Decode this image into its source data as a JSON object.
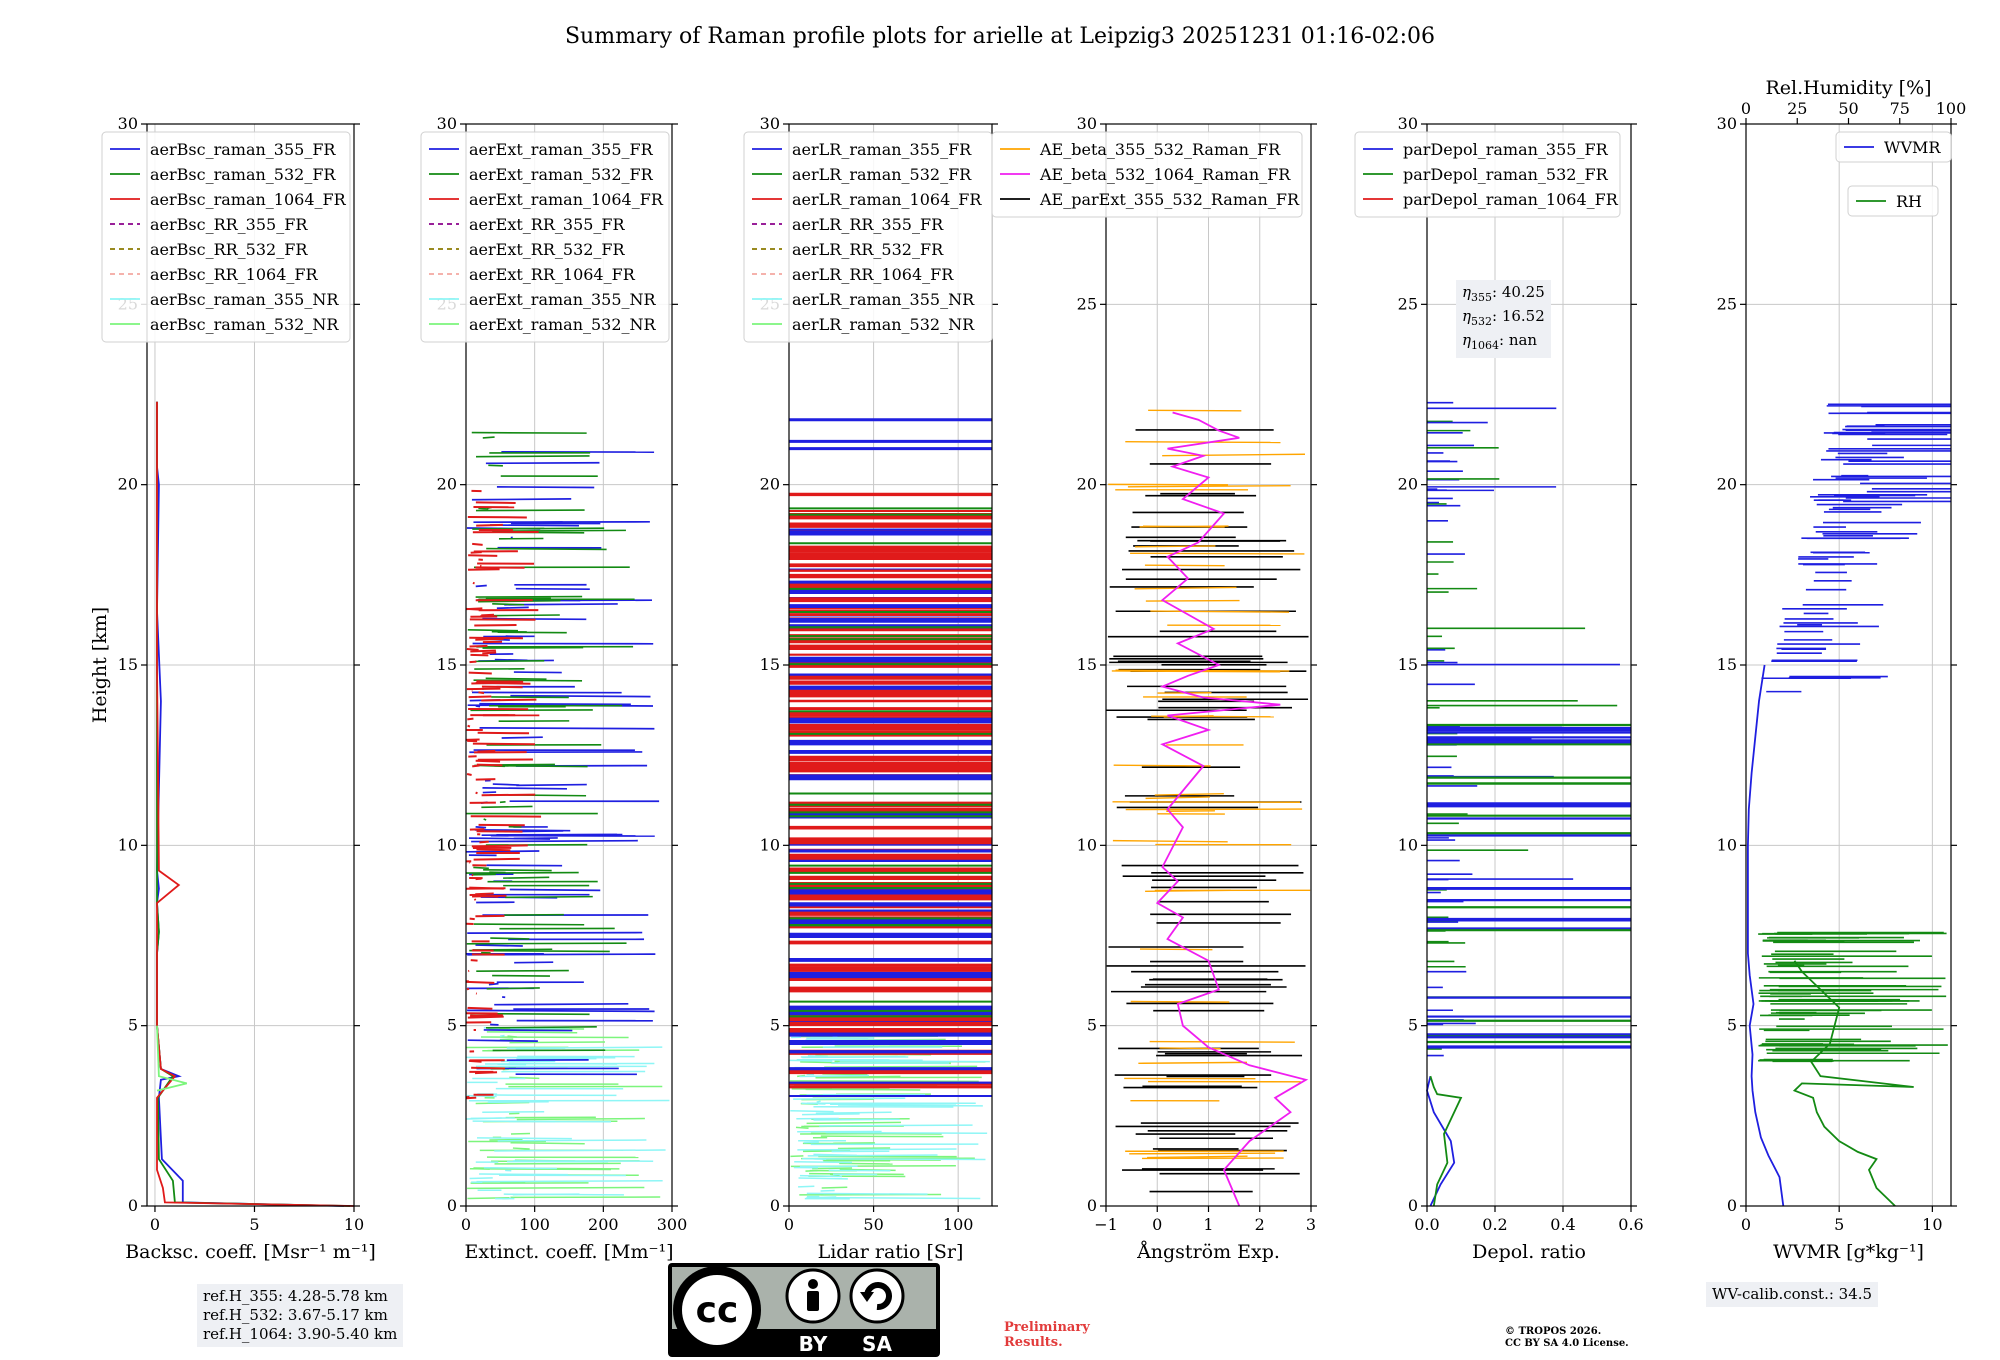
{
  "title": "Summary of Raman profile plots for arielle at Leipzig3 20251231 01:16-02:06",
  "chart_data": [
    {
      "type": "line",
      "panel": "backscatter",
      "xlabel": "Backsc. coeff. [Msr⁻¹ m⁻¹]",
      "ylabel": "Height [km]",
      "xlim": [
        -0.4,
        10
      ],
      "ylim": [
        0,
        30
      ],
      "xticks": [
        0,
        5,
        10
      ],
      "yticks": [
        0,
        5,
        10,
        15,
        20,
        25,
        30
      ],
      "legend": [
        "aerBsc_raman_355_FR",
        "aerBsc_raman_532_FR",
        "aerBsc_raman_1064_FR",
        "aerBsc_RR_355_FR",
        "aerBsc_RR_532_FR",
        "aerBsc_RR_1064_FR",
        "aerBsc_raman_355_NR",
        "aerBsc_raman_532_NR"
      ],
      "series": [
        {
          "name": "aerBsc_raman_355_FR",
          "color": "#1f1fe0",
          "x": [
            9.5,
            1.4,
            1.4,
            0.35,
            0.2,
            0.3,
            1.2,
            0.3,
            0.1,
            0.1,
            0.2,
            0.1,
            0.2,
            0.1,
            0.3,
            0.1,
            0.2,
            0.1,
            0.1,
            0.1
          ],
          "y": [
            0,
            0.1,
            0.7,
            1.3,
            3.0,
            3.5,
            3.6,
            3.8,
            5,
            7,
            7.6,
            8.4,
            8.8,
            9.3,
            14.0,
            16.5,
            20.0,
            20.5,
            21.5,
            22.3
          ]
        },
        {
          "name": "aerBsc_raman_532_FR",
          "color": "#138a13",
          "x": [
            9.8,
            1.0,
            0.9,
            0.2,
            0.15,
            0.9,
            0.3,
            0.1,
            0.1,
            0.2,
            0.1,
            0.1,
            0.1
          ],
          "y": [
            0,
            0.1,
            0.7,
            1.3,
            3.0,
            3.6,
            3.8,
            5,
            7,
            7.6,
            8.4,
            15.0,
            22.3
          ]
        },
        {
          "name": "aerBsc_raman_1064_FR",
          "color": "#e01a1a",
          "x": [
            10.0,
            0.5,
            0.4,
            0.1,
            0.1,
            1.0,
            0.3,
            0.1,
            0.1,
            0.1,
            0.1,
            1.2,
            0.2,
            0.1,
            0.1
          ],
          "y": [
            0,
            0.1,
            0.5,
            1.0,
            3.0,
            3.6,
            3.8,
            5,
            7,
            7.6,
            8.4,
            8.9,
            9.3,
            15.0,
            22.3
          ]
        },
        {
          "name": "aerBsc_raman_532_NR",
          "color": "#7cf57c",
          "x": [
            0.1,
            1.6,
            0.2,
            0.1
          ],
          "y": [
            3.2,
            3.4,
            3.6,
            5
          ]
        }
      ]
    },
    {
      "type": "line",
      "panel": "extinction",
      "xlabel": "Extinct. coeff. [Mm⁻¹]",
      "xlim": [
        0,
        300
      ],
      "ylim": [
        0,
        30
      ],
      "xticks": [
        0,
        100,
        200,
        300
      ],
      "yticks": [
        0,
        5,
        10,
        15,
        20,
        25,
        30
      ],
      "legend": [
        "aerExt_raman_355_FR",
        "aerExt_raman_532_FR",
        "aerExt_raman_1064_FR",
        "aerExt_RR_355_FR",
        "aerExt_RR_532_FR",
        "aerExt_RR_1064_FR",
        "aerExt_raman_355_NR",
        "aerExt_raman_532_NR"
      ]
    },
    {
      "type": "line",
      "panel": "lidar-ratio",
      "xlabel": "Lidar ratio [Sr]",
      "xlim": [
        0,
        120
      ],
      "ylim": [
        0,
        30
      ],
      "xticks": [
        0,
        50,
        100
      ],
      "yticks": [
        0,
        5,
        10,
        15,
        20,
        25,
        30
      ],
      "legend": [
        "aerLR_raman_355_FR",
        "aerLR_raman_532_FR",
        "aerLR_raman_1064_FR",
        "aerLR_RR_355_FR",
        "aerLR_RR_532_FR",
        "aerLR_RR_1064_FR",
        "aerLR_raman_355_NR",
        "aerLR_raman_532_NR"
      ]
    },
    {
      "type": "line",
      "panel": "angstrom",
      "xlabel": "Ångström Exp.",
      "xlim": [
        -1,
        3
      ],
      "ylim": [
        0,
        30
      ],
      "xticks": [
        -1,
        0,
        1,
        2,
        3
      ],
      "yticks": [
        0,
        5,
        10,
        15,
        20,
        25,
        30
      ],
      "legend": [
        "AE_beta_355_532_Raman_FR",
        "AE_beta_532_1064_Raman_FR",
        "AE_parExt_355_532_Raman_FR"
      ],
      "series": [
        {
          "name": "AE_beta_532_1064_Raman_FR",
          "color": "#f01ef0",
          "x": [
            1.6,
            1.3,
            1.8,
            2.6,
            2.3,
            2.9,
            1.8,
            1.0,
            0.5,
            0.4,
            1.2,
            1.0,
            0.2,
            0.5,
            0.0,
            0.4,
            0.1,
            0.5,
            0.2,
            0.9,
            0.1,
            1.0,
            0.2,
            2.4,
            0.9,
            0.1,
            0.6,
            1.2,
            0.4,
            1.1,
            0.1,
            0.6,
            0.2,
            0.8,
            1.3,
            0.5,
            1.0,
            0.3,
            0.9,
            0.2,
            1.6,
            1.2,
            0.8,
            0.3
          ],
          "y": [
            0,
            1.0,
            1.8,
            2.6,
            3.0,
            3.5,
            3.9,
            4.4,
            5.0,
            5.6,
            6.0,
            6.8,
            7.4,
            8.0,
            8.4,
            9.0,
            9.4,
            10.5,
            11.0,
            12.2,
            12.8,
            13.2,
            13.6,
            13.9,
            14.1,
            14.4,
            14.7,
            15.0,
            15.6,
            16.0,
            16.8,
            17.4,
            18.0,
            18.4,
            19.2,
            19.6,
            20.2,
            20.5,
            20.8,
            21.0,
            21.3,
            21.5,
            21.8,
            22.0
          ]
        }
      ]
    },
    {
      "type": "line",
      "panel": "depolarization",
      "xlabel": "Depol. ratio",
      "xlim": [
        0,
        0.6
      ],
      "ylim": [
        0,
        30
      ],
      "xticks": [
        0.0,
        0.2,
        0.4,
        0.6
      ],
      "xtick_labels": [
        "0.0",
        "0.2",
        "0.4",
        "0.6"
      ],
      "yticks": [
        0,
        5,
        10,
        15,
        20,
        25,
        30
      ],
      "legend": [
        "parDepol_raman_355_FR",
        "parDepol_raman_532_FR",
        "parDepol_raman_1064_FR"
      ],
      "series": [
        {
          "name": "parDepol_raman_355_FR",
          "color": "#1f1fe0",
          "x": [
            0.01,
            0.04,
            0.08,
            0.07,
            0.02,
            0.0,
            0.01
          ],
          "y": [
            0,
            0.6,
            1.2,
            1.8,
            2.6,
            3.2,
            3.6
          ]
        },
        {
          "name": "parDepol_raman_532_FR",
          "color": "#138a13",
          "x": [
            0.02,
            0.03,
            0.06,
            0.05,
            0.1,
            0.03,
            0.02,
            0.01
          ],
          "y": [
            0,
            0.6,
            1.2,
            2.0,
            3.0,
            3.1,
            3.3,
            3.6
          ]
        }
      ]
    },
    {
      "type": "line",
      "panel": "water-vapor",
      "xlabel": "WVMR [g*kg⁻¹]",
      "x2label": "Rel.Humidity [%]",
      "xlim": [
        0,
        11
      ],
      "x2lim": [
        0,
        100
      ],
      "ylim": [
        0,
        30
      ],
      "xticks": [
        0,
        5,
        10
      ],
      "x2ticks": [
        0,
        25,
        50,
        75,
        100
      ],
      "yticks": [
        0,
        5,
        10,
        15,
        20,
        25,
        30
      ],
      "legend": [
        "WVMR",
        "RH"
      ],
      "series": [
        {
          "name": "WVMR",
          "color": "#1f1fe0",
          "x": [
            2.0,
            1.8,
            1.2,
            0.8,
            0.5,
            0.35,
            0.3,
            0.35,
            0.2,
            0.4,
            0.2,
            0.1,
            0.1,
            0.1,
            0.1,
            0.15,
            0.3,
            0.5,
            0.7,
            1.0
          ],
          "y": [
            0,
            0.8,
            1.4,
            1.9,
            2.6,
            3.2,
            3.6,
            4.2,
            5.0,
            5.6,
            6.4,
            7.0,
            8.0,
            9.0,
            10.0,
            11.0,
            12.0,
            13.0,
            14.0,
            15.0
          ]
        },
        {
          "name": "RH",
          "color": "#138a13",
          "x": [
            8.0,
            7.0,
            6.6,
            7.0,
            6.0,
            5.0,
            4.2,
            3.8,
            3.6,
            2.6,
            3.0,
            9.0,
            4.0,
            3.5,
            4.5,
            5.0,
            3.0,
            2.6
          ],
          "y": [
            0,
            0.5,
            1.0,
            1.3,
            1.5,
            1.8,
            2.2,
            2.6,
            3.0,
            3.2,
            3.4,
            3.3,
            3.6,
            4.0,
            4.5,
            5.5,
            6.5,
            6.8
          ]
        }
      ]
    }
  ],
  "annotations": {
    "refh": [
      "ref.H_355: 4.28-5.78 km",
      "ref.H_532: 3.67-5.17 km",
      "ref.H_1064: 3.90-5.40 km"
    ],
    "eta": [
      {
        "sym": "η",
        "sub": "355",
        "val": ": 40.25"
      },
      {
        "sym": "η",
        "sub": "532",
        "val": ": 16.52"
      },
      {
        "sym": "η",
        "sub": "1064",
        "val": ": nan"
      }
    ],
    "wv_calib": "WV-calib.const.: 34.5",
    "preliminary": [
      "Preliminary",
      "Results."
    ],
    "copyright": [
      "© TROPOS 2026.",
      "CC BY SA 4.0 License."
    ],
    "cc_logo": {
      "cc": "cc",
      "by": "BY",
      "sa": "SA"
    }
  },
  "colors": {
    "c355": "#1f1fe0",
    "c532": "#138a13",
    "c1064": "#e01a1a",
    "rr355": "#8b008b",
    "rr532": "#8b7a00",
    "rr1064": "#f4a8a0",
    "nr355": "#8ef6f6",
    "nr532": "#7cf57c",
    "ae_beta_355_532": "#ffa500",
    "ae_beta_532_1064": "#f01ef0",
    "ae_parext": "#000000"
  }
}
